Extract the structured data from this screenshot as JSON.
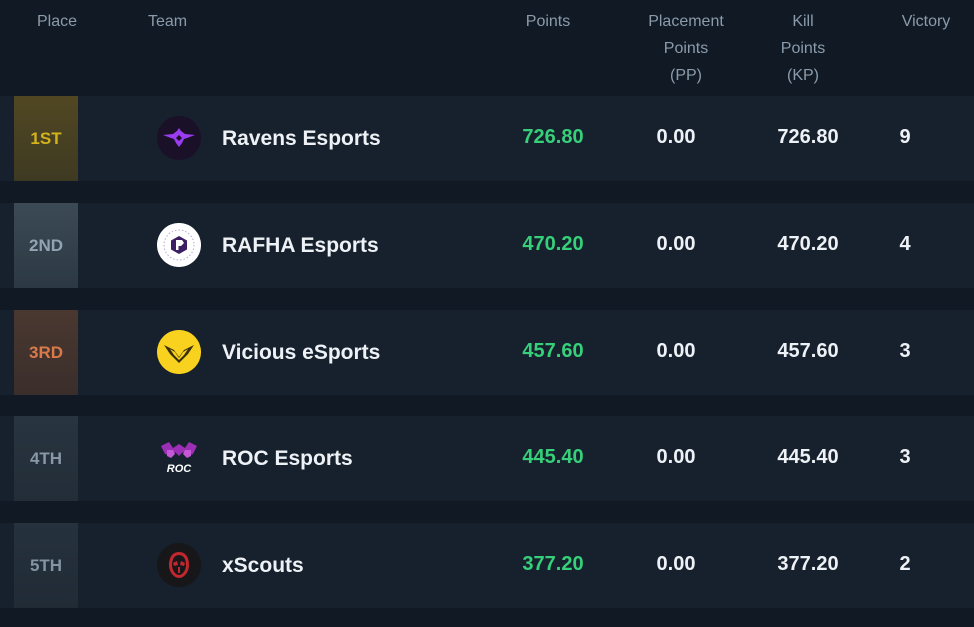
{
  "header": {
    "place": "Place",
    "team": "Team",
    "points": "Points",
    "placement_points": [
      "Placement",
      "Points",
      "(PP)"
    ],
    "kill_points": [
      "Kill",
      "Points",
      "(KP)"
    ],
    "victory": "Victory"
  },
  "rows": [
    {
      "place": "1ST",
      "team": "Ravens Esports",
      "logo": "raven-bird-icon",
      "points": "726.80",
      "pp": "0.00",
      "kp": "726.80",
      "victory": "9"
    },
    {
      "place": "2ND",
      "team": "RAFHA Esports",
      "logo": "rafha-hexagon-icon",
      "points": "470.20",
      "pp": "0.00",
      "kp": "470.20",
      "victory": "4"
    },
    {
      "place": "3RD",
      "team": "Vicious eSports",
      "logo": "vicious-wings-icon",
      "points": "457.60",
      "pp": "0.00",
      "kp": "457.60",
      "victory": "3"
    },
    {
      "place": "4TH",
      "team": "ROC Esports",
      "logo": "roc-bat-icon",
      "points": "445.40",
      "pp": "0.00",
      "kp": "445.40",
      "victory": "3"
    },
    {
      "place": "5TH",
      "team": "xScouts",
      "logo": "xscouts-mask-icon",
      "points": "377.20",
      "pp": "0.00",
      "kp": "377.20",
      "victory": "2"
    }
  ],
  "colors": {
    "background": "#111925",
    "row": "#17212d",
    "points_green": "#36d07a",
    "gold": "#d4b21c",
    "bronze": "#d97a4a"
  }
}
